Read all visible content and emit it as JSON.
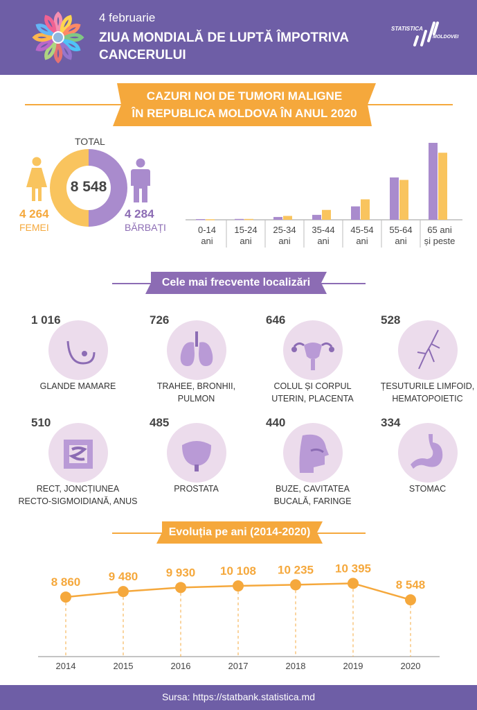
{
  "header": {
    "date": "4 februarie",
    "title_line1": "ZIUA MONDIALĂ DE LUPTĂ ÎMPOTRIVA",
    "title_line2": "CANCERULUI",
    "logo_line1": "STATISTICA",
    "logo_line2": "MOLDOVEI"
  },
  "banner": {
    "line1": "CAZURI NOI DE TUMORI MALIGNE",
    "line2": "ÎN REPUBLICA MOLDOVA ÎN ANUL 2020"
  },
  "total": {
    "label": "TOTAL",
    "value": "8 548",
    "female_value": "4 264",
    "female_label": "FEMEI",
    "male_value": "4 284",
    "male_label": "BĂRBAȚI"
  },
  "colors": {
    "purple": "#8c6cb4",
    "orange": "#f5a83c",
    "header": "#6e5ea6",
    "circle": "#ecdcec"
  },
  "chart_data": [
    {
      "type": "bar",
      "categories": [
        "0-14 ani",
        "15-24 ani",
        "25-34 ani",
        "35-44 ani",
        "45-54 ani",
        "55-64 ani",
        "65 ani și peste"
      ],
      "series": [
        {
          "name": "BĂRBAȚI",
          "color": "#a98bcd",
          "values": [
            10,
            12,
            40,
            70,
            190,
            600,
            1090
          ]
        },
        {
          "name": "FEMEI",
          "color": "#f9c45e",
          "values": [
            8,
            12,
            55,
            140,
            290,
            565,
            950
          ]
        }
      ]
    },
    {
      "type": "line",
      "title": "Evoluția pe ani (2014-2020)",
      "x": [
        "2014",
        "2015",
        "2016",
        "2017",
        "2018",
        "2019",
        "2020"
      ],
      "values": [
        8860,
        9480,
        9930,
        10108,
        10235,
        10395,
        8548
      ],
      "value_labels": [
        "8 860",
        "9 480",
        "9 930",
        "10 108",
        "10 235",
        "10 395",
        "8 548"
      ]
    }
  ],
  "localizations_title": "Cele mai frecvente localizări",
  "localizations": [
    {
      "value": "1 016",
      "label1": "GLANDE MAMARE",
      "label2": "",
      "icon": "breast-icon"
    },
    {
      "value": "726",
      "label1": "TRAHEE, BRONHII,",
      "label2": "PULMON",
      "icon": "lungs-icon"
    },
    {
      "value": "646",
      "label1": "COLUL ȘI CORPUL",
      "label2": "UTERIN, PLACENTA",
      "icon": "uterus-icon"
    },
    {
      "value": "528",
      "label1": "ȚESUTURILE LIMFOID,",
      "label2": "HEMATOPOIETIC",
      "icon": "lymph-icon"
    },
    {
      "value": "510",
      "label1": "RECT, JONCȚIUNEA",
      "label2": "RECTO-SIGMOIDIANĂ, ANUS",
      "icon": "intestine-icon"
    },
    {
      "value": "485",
      "label1": "PROSTATA",
      "label2": "",
      "icon": "bladder-icon"
    },
    {
      "value": "440",
      "label1": "BUZE, CAVITATEA",
      "label2": "BUCALĂ, FARINGE",
      "icon": "head-icon"
    },
    {
      "value": "334",
      "label1": "STOMAC",
      "label2": "",
      "icon": "stomach-icon"
    }
  ],
  "footer": {
    "source": "Sursa: https://statbank.statistica.md"
  }
}
